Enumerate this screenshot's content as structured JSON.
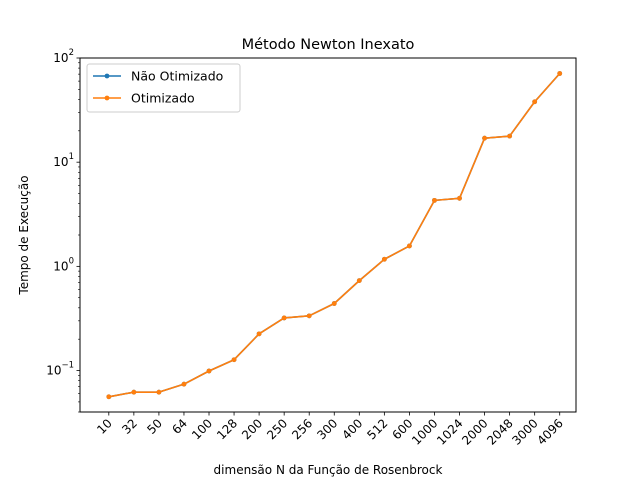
{
  "chart_data": {
    "type": "line",
    "title": "Método Newton Inexato",
    "xlabel": "dimensão N da Função de Rosenbrock",
    "ylabel": "Tempo de Execução",
    "yscale": "log",
    "ylim": [
      0.04,
      100
    ],
    "y_ticks": [
      {
        "base": "10",
        "exp": "−1"
      },
      {
        "base": "10",
        "exp": "0"
      },
      {
        "base": "10",
        "exp": "1"
      },
      {
        "base": "10",
        "exp": "2"
      }
    ],
    "categories": [
      "10",
      "32",
      "50",
      "64",
      "100",
      "128",
      "200",
      "250",
      "256",
      "300",
      "400",
      "512",
      "600",
      "1000",
      "1024",
      "2000",
      "2048",
      "3000",
      "4096"
    ],
    "grid": false,
    "legend_position": "top-left",
    "series": [
      {
        "name": "Não Otimizado",
        "color": "#1f77b4",
        "values": [
          0.056,
          0.062,
          0.062,
          0.074,
          0.099,
          0.127,
          0.225,
          0.32,
          0.335,
          0.44,
          0.73,
          1.17,
          1.57,
          4.3,
          4.5,
          17.0,
          17.8,
          38.0,
          71.0
        ]
      },
      {
        "name": "Otimizado",
        "color": "#ff7f0e",
        "values": [
          0.056,
          0.062,
          0.062,
          0.074,
          0.099,
          0.127,
          0.225,
          0.32,
          0.335,
          0.44,
          0.73,
          1.17,
          1.57,
          4.3,
          4.5,
          17.0,
          17.8,
          38.0,
          71.0
        ]
      }
    ]
  }
}
